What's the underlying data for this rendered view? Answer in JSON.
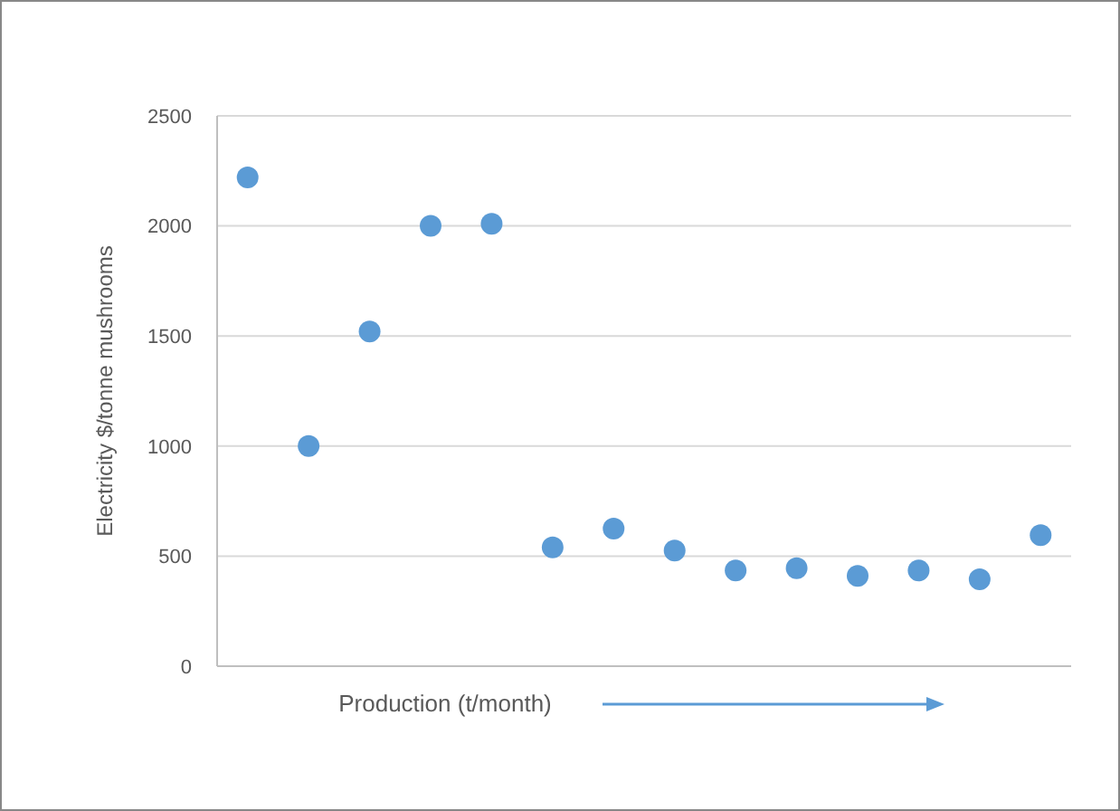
{
  "chart_data": {
    "type": "scatter",
    "xlabel": "Production (t/month)",
    "ylabel": "Electricity $/tonne mushrooms",
    "categories": [
      null,
      null,
      null,
      null,
      null,
      null,
      null,
      null,
      null,
      null,
      null,
      null,
      null,
      null
    ],
    "series": [
      {
        "color": "#5b9bd5",
        "values": [
          2220,
          1000,
          1520,
          2000,
          2010,
          540,
          625,
          525,
          435,
          445,
          410,
          435,
          395,
          595
        ]
      }
    ],
    "ylim": [
      0,
      2500
    ],
    "yticks": [
      0,
      500,
      1000,
      1500,
      2000,
      2500
    ],
    "grid": "y",
    "tick_labels": "y",
    "marker": "circle"
  }
}
